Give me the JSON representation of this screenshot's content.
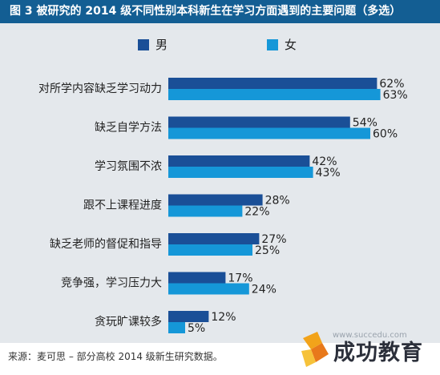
{
  "title": "图 3 被研究的 2014 级不同性别本科新生在学习方面遇到的主要问题（多选）",
  "source": "来源：麦可思 – 部分高校 2014 级新生研究数据。",
  "watermark": {
    "url": "www.succedu.com",
    "logo_text": "成功教育"
  },
  "colors": {
    "title_bg": "#135e93",
    "panel_bg": "#e4e8ec",
    "male": "#1a4f97",
    "female": "#1597d8"
  },
  "chart_data": {
    "type": "bar",
    "orientation": "horizontal",
    "title": "图 3 被研究的 2014 级不同性别本科新生在学习方面遇到的主要问题（多选）",
    "categories": [
      "对所学内容缺乏学习动力",
      "缺乏自学方法",
      "学习氛围不浓",
      "跟不上课程进度",
      "缺乏老师的督促和指导",
      "竞争强，学习压力大",
      "贪玩旷课较多"
    ],
    "series": [
      {
        "name": "男",
        "color": "#1a4f97",
        "values": [
          62,
          54,
          42,
          28,
          27,
          17,
          12
        ]
      },
      {
        "name": "女",
        "color": "#1597d8",
        "values": [
          63,
          60,
          43,
          22,
          25,
          24,
          5
        ]
      }
    ],
    "value_suffix": "%",
    "xlim": [
      0,
      100
    ],
    "grid": false,
    "legend_position": "top"
  }
}
